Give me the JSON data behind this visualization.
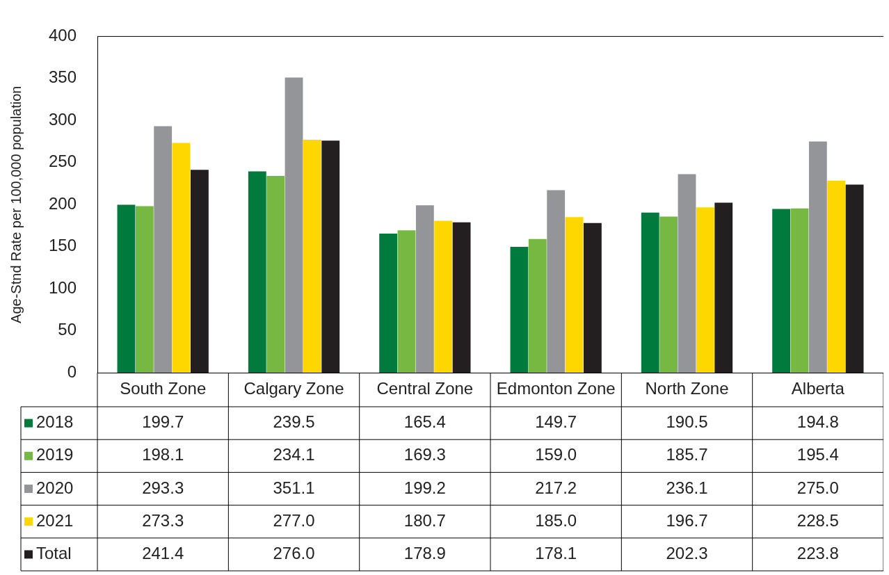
{
  "chart_data": {
    "type": "bar",
    "ylabel": "Age-Stnd Rate per 100,000 population",
    "categories": [
      "South Zone",
      "Calgary Zone",
      "Central Zone",
      "Edmonton Zone",
      "North Zone",
      "Alberta"
    ],
    "series": [
      {
        "name": "2018",
        "color": "#007a3d",
        "values": [
          199.7,
          239.5,
          165.4,
          149.7,
          190.5,
          194.8
        ],
        "value_labels": [
          "199.7",
          "239.5",
          "165.4",
          "149.7",
          "190.5",
          "194.8"
        ]
      },
      {
        "name": "2019",
        "color": "#77b843",
        "values": [
          198.1,
          234.1,
          169.3,
          159.0,
          185.7,
          195.4
        ],
        "value_labels": [
          "198.1",
          "234.1",
          "169.3",
          "159.0",
          "185.7",
          "195.4"
        ]
      },
      {
        "name": "2020",
        "color": "#939598",
        "values": [
          293.3,
          351.1,
          199.2,
          217.2,
          236.1,
          275.0
        ],
        "value_labels": [
          "293.3",
          "351.1",
          "199.2",
          "217.2",
          "236.1",
          "275.0"
        ]
      },
      {
        "name": "2021",
        "color": "#ffd700",
        "values": [
          273.3,
          277.0,
          180.7,
          185.0,
          196.7,
          228.5
        ],
        "value_labels": [
          "273.3",
          "277.0",
          "180.7",
          "185.0",
          "196.7",
          "228.5"
        ]
      },
      {
        "name": "Total",
        "color": "#231f20",
        "values": [
          241.4,
          276.0,
          178.9,
          178.1,
          202.3,
          223.8
        ],
        "value_labels": [
          "241.4",
          "276.0",
          "178.9",
          "178.1",
          "202.3",
          "223.8"
        ]
      }
    ],
    "ylim": [
      0,
      400
    ],
    "yticks": [
      0,
      50,
      100,
      150,
      200,
      250,
      300,
      350,
      400
    ],
    "grid": false,
    "legend": "bottom"
  }
}
